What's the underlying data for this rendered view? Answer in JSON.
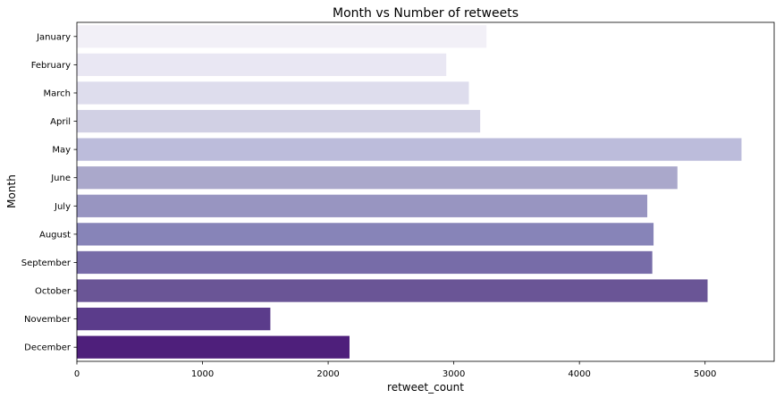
{
  "chart_data": {
    "type": "bar",
    "orientation": "horizontal",
    "title": "Month vs Number of retweets",
    "xlabel": "retweet_count",
    "ylabel": "Month",
    "categories": [
      "January",
      "February",
      "March",
      "April",
      "May",
      "June",
      "July",
      "August",
      "September",
      "October",
      "November",
      "December"
    ],
    "values": [
      3260,
      2940,
      3120,
      3210,
      5290,
      4780,
      4540,
      4590,
      4580,
      5020,
      1540,
      2170
    ],
    "xlim": [
      0,
      5550
    ],
    "xticks": [
      0,
      1000,
      2000,
      3000,
      4000,
      5000
    ],
    "grid": false,
    "colors": [
      "#f2f0f7",
      "#e9e7f3",
      "#dedded",
      "#d1d0e4",
      "#bcbcdb",
      "#aaa8cb",
      "#9895c1",
      "#8784b8",
      "#776ca8",
      "#6a5596",
      "#5b3c8b",
      "#4e1f7b"
    ]
  }
}
